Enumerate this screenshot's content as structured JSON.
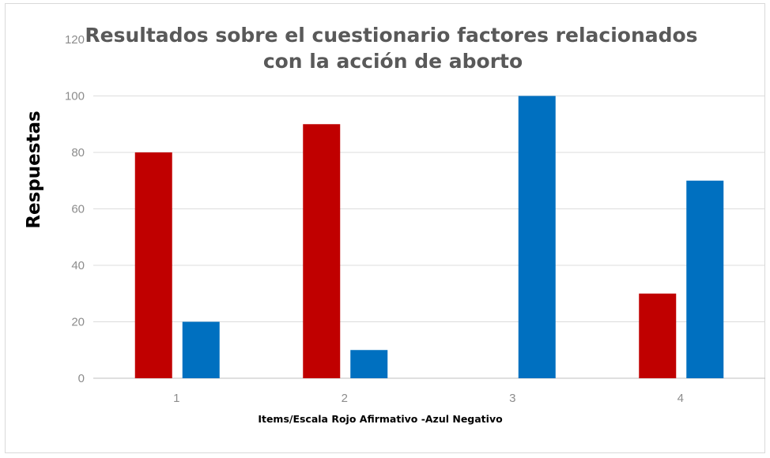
{
  "chart_data": {
    "type": "bar",
    "title_lines": [
      "Resultados sobre el cuestionario  factores relacionados",
      "con la acción de aborto"
    ],
    "xlabel": "Items/Escala   Rojo Afirmativo -Azul Negativo",
    "ylabel": "Respuestas",
    "categories": [
      "1",
      "2",
      "3",
      "4"
    ],
    "ylim": [
      0,
      120
    ],
    "yticks": [
      0,
      20,
      40,
      60,
      80,
      100,
      120
    ],
    "grid": true,
    "legend": "none",
    "series": [
      {
        "values": [
          80,
          90,
          0,
          30
        ],
        "color": "#c00000"
      },
      {
        "values": [
          20,
          10,
          100,
          70
        ],
        "color": "#0070c0"
      }
    ]
  }
}
